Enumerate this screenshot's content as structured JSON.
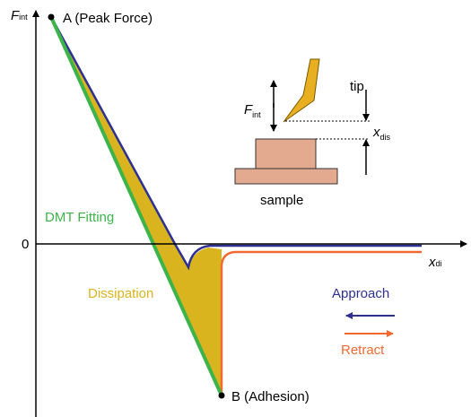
{
  "axes": {
    "y_label": {
      "main": "F",
      "sub": "int"
    },
    "x_label": {
      "main": "x",
      "sub": "di"
    },
    "origin": "0"
  },
  "points": {
    "peak": "A (Peak Force)",
    "adhesion": "B (Adhesion)"
  },
  "annotations": {
    "dmt": "DMT Fitting",
    "dissipation": "Dissipation"
  },
  "inset": {
    "tip": "tip",
    "force": {
      "main": "F",
      "sub": "int"
    },
    "distance": {
      "main": "x",
      "sub": "dis"
    },
    "sample": "sample"
  },
  "legend": {
    "approach": "Approach",
    "retract": "Retract"
  }
}
